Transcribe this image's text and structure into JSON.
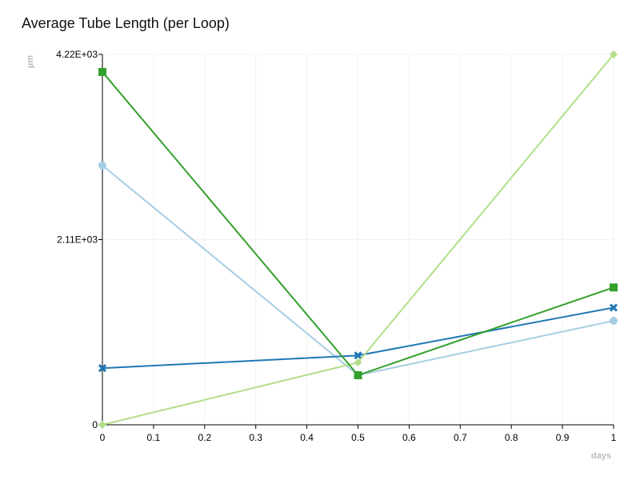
{
  "chart_data": {
    "type": "line",
    "title": "Average Tube Length (per Loop)",
    "xlabel": "days",
    "ylabel": "µm",
    "xlim": [
      0,
      1
    ],
    "ylim": [
      0,
      4220
    ],
    "x_ticks": [
      "0",
      "0.1",
      "0.2",
      "0.3",
      "0.4",
      "0.5",
      "0.6",
      "0.7",
      "0.8",
      "0.9",
      "1"
    ],
    "y_ticks": [
      "0",
      "2.11E+03",
      "4.22E+03"
    ],
    "grid": true,
    "x": [
      0,
      0.5,
      1
    ],
    "series": [
      {
        "color": "#a6cee3",
        "marker": "circle",
        "values": [
          2955,
          565,
          1185
        ]
      },
      {
        "color": "#1f78b4",
        "marker": "cross",
        "values": [
          645,
          790,
          1335
        ]
      },
      {
        "color": "#b2df8a",
        "marker": "diamond",
        "values": [
          0,
          710,
          4220
        ]
      },
      {
        "color": "#33a02c",
        "marker": "square",
        "values": [
          4020,
          565,
          1565
        ]
      }
    ]
  }
}
